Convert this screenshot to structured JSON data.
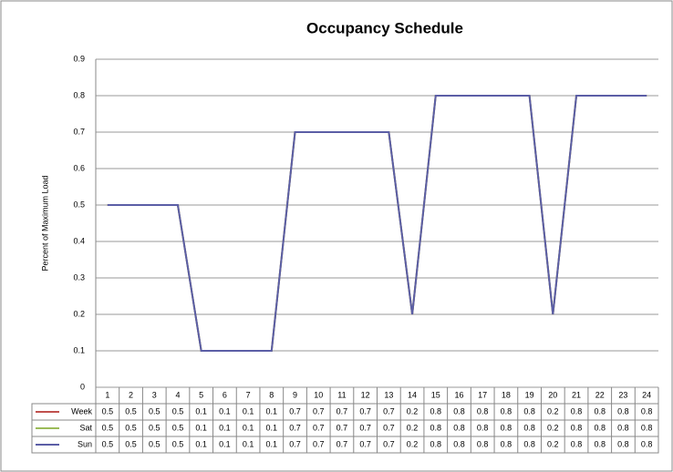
{
  "chart_data": {
    "type": "line",
    "title": "Occupancy Schedule",
    "y_label": "Percent of Maximum Load",
    "categories": [
      1,
      2,
      3,
      4,
      5,
      6,
      7,
      8,
      9,
      10,
      11,
      12,
      13,
      14,
      15,
      16,
      17,
      18,
      19,
      20,
      21,
      22,
      23,
      24
    ],
    "series": [
      {
        "name": "Week",
        "color": "#c0504d",
        "values": [
          0.5,
          0.5,
          0.5,
          0.5,
          0.1,
          0.1,
          0.1,
          0.1,
          0.7,
          0.7,
          0.7,
          0.7,
          0.7,
          0.2,
          0.8,
          0.8,
          0.8,
          0.8,
          0.8,
          0.2,
          0.8,
          0.8,
          0.8,
          0.8
        ]
      },
      {
        "name": "Sat",
        "color": "#9bbb59",
        "values": [
          0.5,
          0.5,
          0.5,
          0.5,
          0.1,
          0.1,
          0.1,
          0.1,
          0.7,
          0.7,
          0.7,
          0.7,
          0.7,
          0.2,
          0.8,
          0.8,
          0.8,
          0.8,
          0.8,
          0.2,
          0.8,
          0.8,
          0.8,
          0.8
        ]
      },
      {
        "name": "Sun",
        "color": "#5b5ea6",
        "values": [
          0.5,
          0.5,
          0.5,
          0.5,
          0.1,
          0.1,
          0.1,
          0.1,
          0.7,
          0.7,
          0.7,
          0.7,
          0.7,
          0.2,
          0.8,
          0.8,
          0.8,
          0.8,
          0.8,
          0.2,
          0.8,
          0.8,
          0.8,
          0.8
        ]
      }
    ],
    "ylim": [
      0,
      0.9
    ],
    "yticks": [
      0,
      0.1,
      0.2,
      0.3,
      0.4,
      0.5,
      0.6,
      0.7,
      0.8,
      0.9
    ],
    "grid": true
  }
}
